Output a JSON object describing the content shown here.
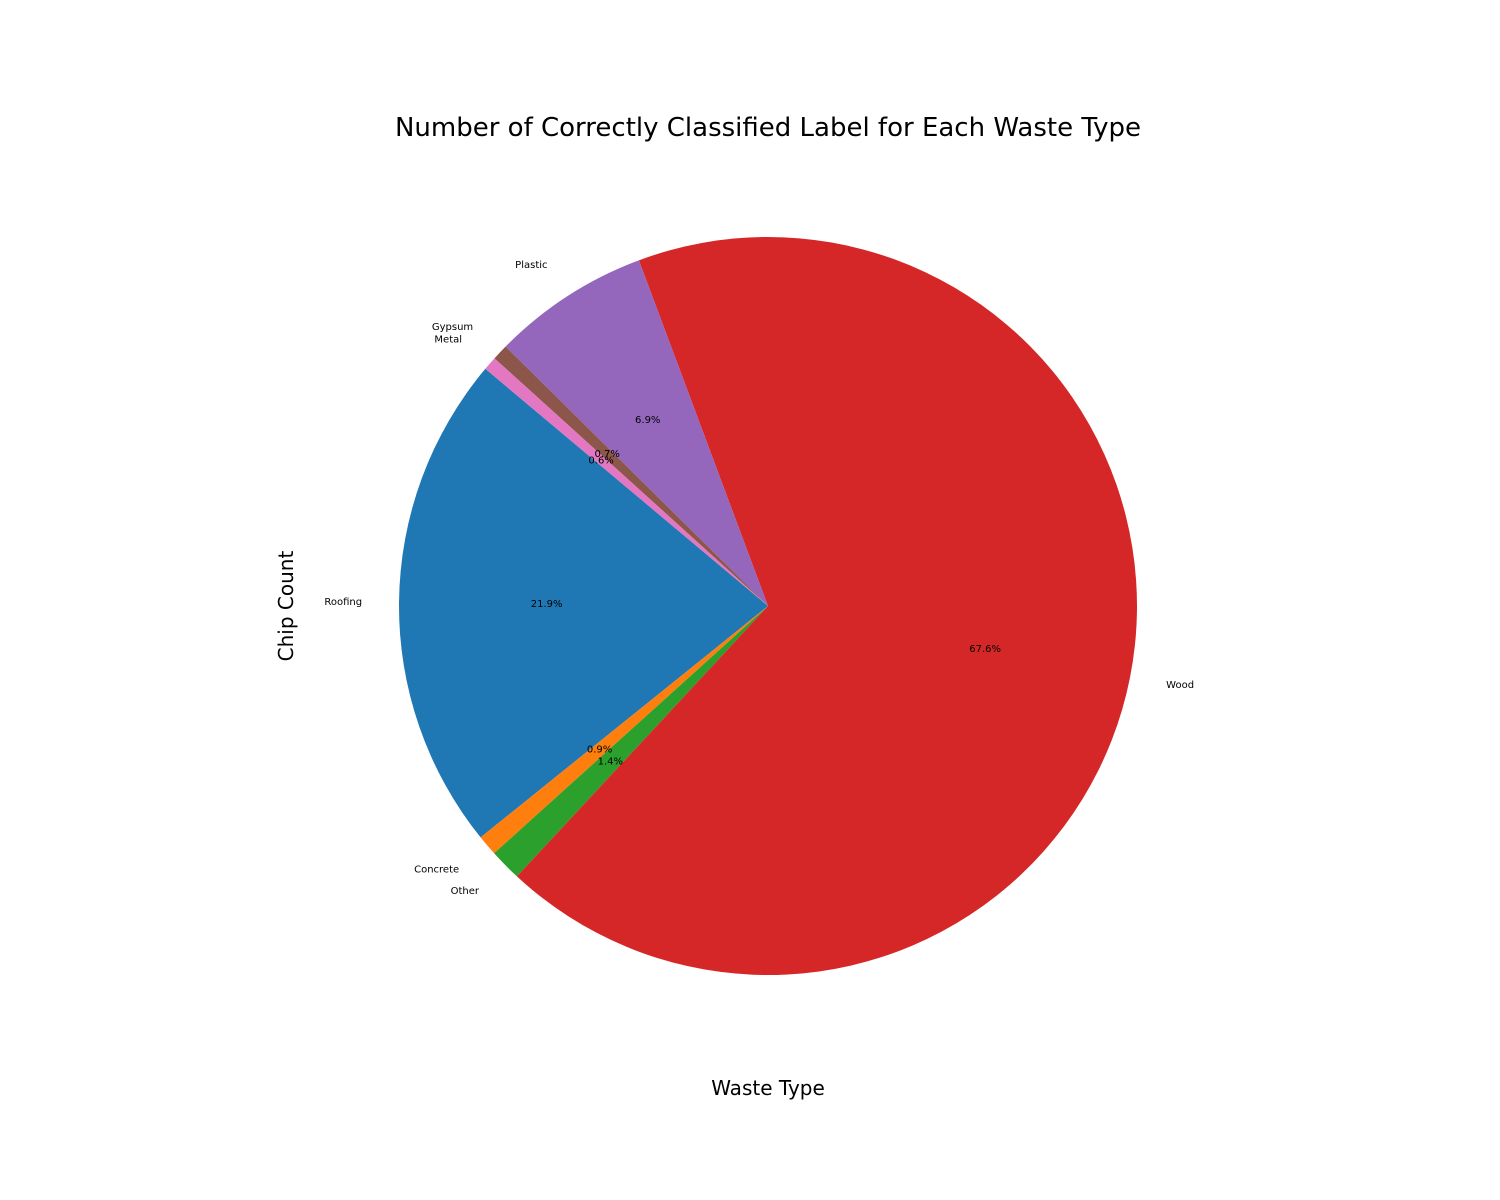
{
  "chart_data": {
    "type": "pie",
    "title": "Number of Correctly Classified Label for Each Waste Type",
    "xlabel": "Waste Type",
    "ylabel": "Chip Count",
    "start_angle_deg": 140,
    "direction": "counterclockwise",
    "autopct_format": "{:.1f}%",
    "slices": [
      {
        "label": "Roofing",
        "value": 21.9,
        "color": "#1f77b4"
      },
      {
        "label": "Concrete",
        "value": 0.9,
        "color": "#ff7f0e"
      },
      {
        "label": "Other",
        "value": 1.4,
        "color": "#2ca02c"
      },
      {
        "label": "Wood",
        "value": 67.6,
        "color": "#d62728"
      },
      {
        "label": "Plastic",
        "value": 6.9,
        "color": "#9467bd"
      },
      {
        "label": "Gypsum",
        "value": 0.7,
        "color": "#8c564b"
      },
      {
        "label": "Metal",
        "value": 0.6,
        "color": "#e377c2"
      }
    ]
  }
}
